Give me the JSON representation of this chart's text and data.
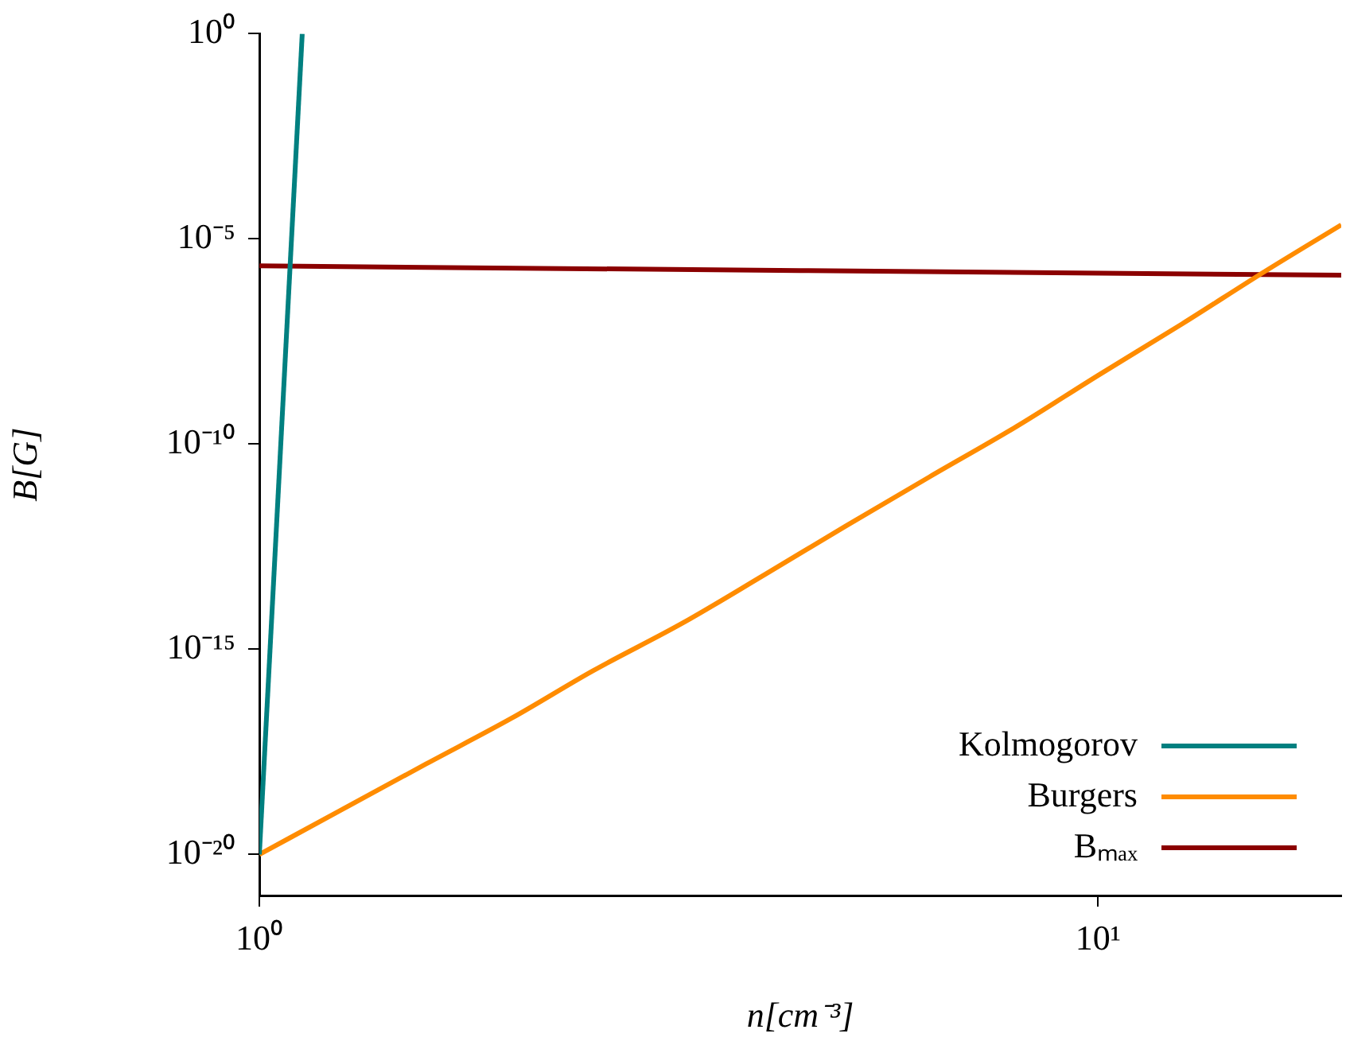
{
  "chart_data": {
    "type": "line",
    "xlabel": "n[cm⁻³]",
    "ylabel": "B[G]",
    "log": "xy",
    "grid": false,
    "legend": "bottom right",
    "marker": "none",
    "line_style": "solid",
    "xlim": [
      1,
      19.5
    ],
    "ylim": [
      1e-21,
      1
    ],
    "xticks": [
      {
        "value": 1,
        "label": "10⁰"
      },
      {
        "value": 10,
        "label": "10¹"
      }
    ],
    "yticks": [
      {
        "value": 1e-20,
        "label": "10⁻²⁰"
      },
      {
        "value": 1e-15,
        "label": "10⁻¹⁵"
      },
      {
        "value": 1e-10,
        "label": "10⁻¹⁰"
      },
      {
        "value": 1e-05,
        "label": "10⁻⁵"
      },
      {
        "value": 1,
        "label": "10⁰"
      }
    ],
    "series": [
      {
        "name": "Kolmogorov",
        "color": "#008080",
        "x": [
          1,
          1.125
        ],
        "values": [
          1e-20,
          1
        ]
      },
      {
        "name": "Burgers",
        "color": "#ff8c00",
        "x": [
          1,
          1.26,
          1.58,
          2,
          2.5,
          3.2,
          4,
          5,
          6.3,
          8,
          10,
          12.6,
          15.8,
          19.5
        ],
        "values": [
          1e-20,
          1.3e-19,
          1.6e-18,
          2.1e-17,
          3e-16,
          4.4e-15,
          6.5e-14,
          1e-12,
          1.6e-11,
          2.7e-10,
          4.7e-09,
          8.5e-08,
          1.6e-06,
          2.2e-05
        ]
      },
      {
        "name": "Bₘₐₓ",
        "color": "#8b0000",
        "x": [
          1,
          19.5
        ],
        "values": [
          2.2e-06,
          1.3e-06
        ]
      }
    ]
  }
}
